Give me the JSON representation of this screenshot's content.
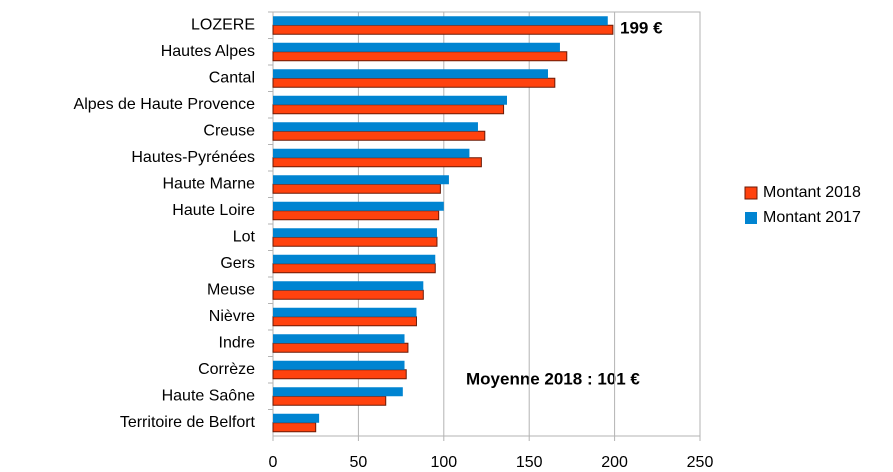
{
  "chart_data": {
    "type": "hbar",
    "categories": [
      "LOZERE",
      "Hautes Alpes",
      "Cantal",
      "Alpes de Haute Provence",
      "Creuse",
      "Hautes-Pyrénées",
      "Haute Marne",
      "Haute Loire",
      "Lot",
      "Gers",
      "Meuse",
      "Nièvre",
      "Indre",
      "Corrèze",
      "Haute Saône",
      "Territoire de Belfort"
    ],
    "series": [
      {
        "name": "Montant 2018",
        "color": "#ff420e",
        "values": [
          199,
          172,
          165,
          135,
          124,
          122,
          98,
          97,
          96,
          95,
          88,
          84,
          79,
          78,
          66,
          25
        ]
      },
      {
        "name": "Montant 2017",
        "color": "#0084d1",
        "values": [
          196,
          168,
          161,
          137,
          120,
          115,
          103,
          100,
          96,
          95,
          88,
          84,
          77,
          77,
          76,
          27
        ]
      }
    ],
    "xlim": [
      0,
      250
    ],
    "xticks": [
      0,
      50,
      100,
      150,
      200,
      250
    ],
    "grid": true,
    "legend": "right",
    "annotations": [
      "199 €",
      "Moyenne 2018 : 101 €"
    ]
  }
}
